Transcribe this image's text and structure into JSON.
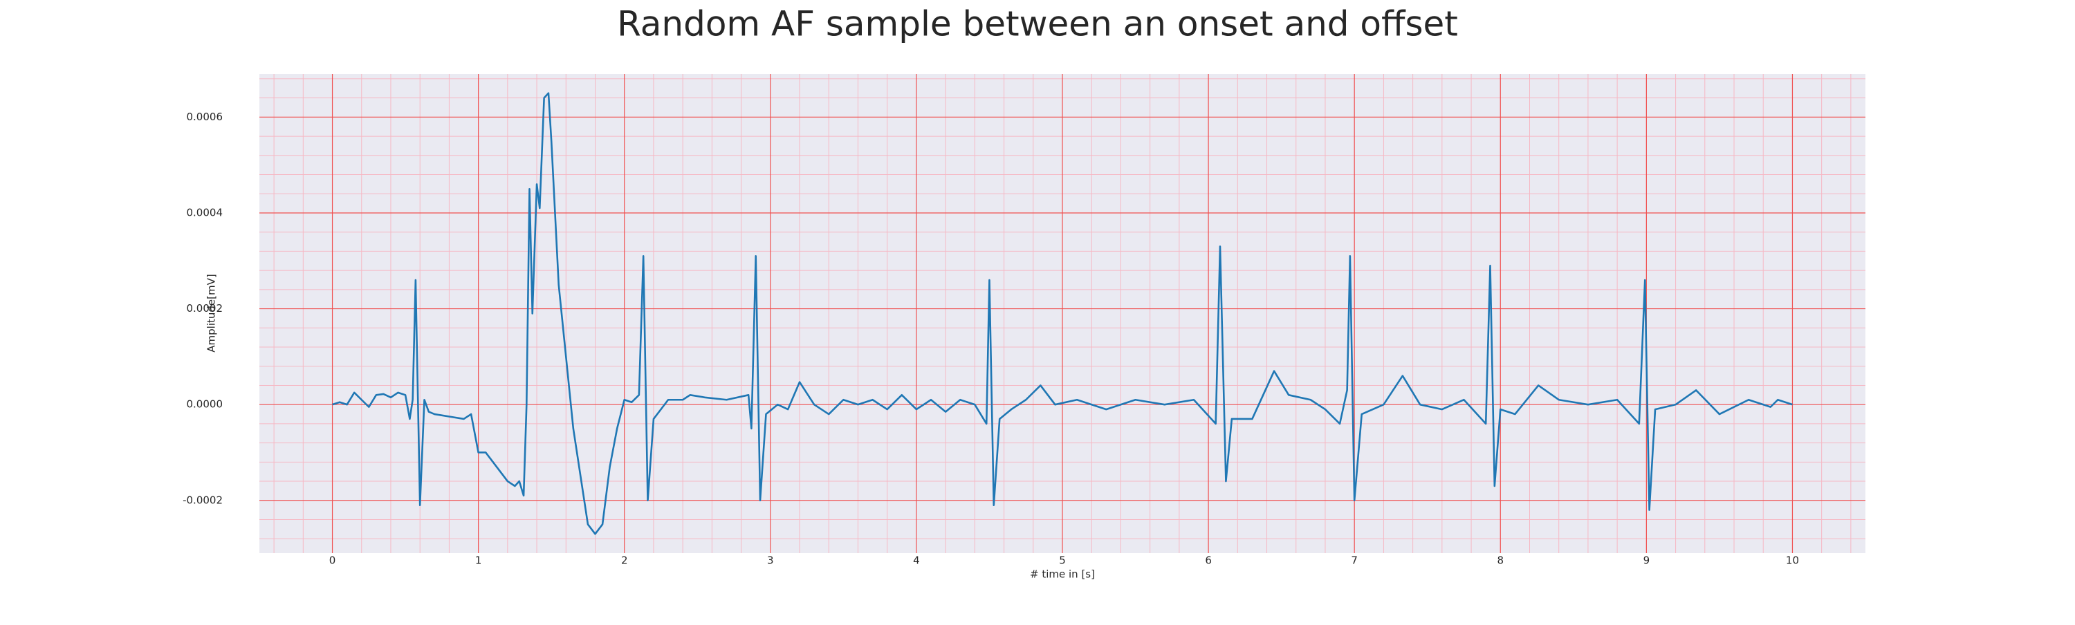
{
  "chart_data": {
    "type": "line",
    "title": "Random AF sample between an onset and offset",
    "xlabel": "# time in [s]",
    "ylabel": "Amplitude[mV]",
    "xlim": [
      -0.5,
      10.5
    ],
    "ylim": [
      -0.00031,
      0.00069
    ],
    "xticks": [
      0,
      1,
      2,
      3,
      4,
      5,
      6,
      7,
      8,
      9,
      10
    ],
    "yticks": [
      -0.0002,
      {
        "value": 0,
        "label": "0.0000"
      },
      0.0002,
      0.0004,
      0.0006
    ],
    "grid": true,
    "minor_grid": true,
    "color": "#1f77b4",
    "x": [
      0,
      0.05,
      0.1,
      0.15,
      0.2,
      0.25,
      0.3,
      0.35,
      0.4,
      0.45,
      0.5,
      0.53,
      0.55,
      0.57,
      0.6,
      0.63,
      0.66,
      0.7,
      0.8,
      0.9,
      0.95,
      1.0,
      1.05,
      1.1,
      1.15,
      1.2,
      1.25,
      1.28,
      1.31,
      1.33,
      1.35,
      1.37,
      1.4,
      1.42,
      1.45,
      1.48,
      1.5,
      1.55,
      1.6,
      1.65,
      1.7,
      1.75,
      1.8,
      1.85,
      1.9,
      1.95,
      2.0,
      2.05,
      2.1,
      2.13,
      2.16,
      2.2,
      2.25,
      2.3,
      2.4,
      2.45,
      2.55,
      2.7,
      2.85,
      2.87,
      2.9,
      2.93,
      2.97,
      3.05,
      3.12,
      3.2,
      3.3,
      3.4,
      3.5,
      3.6,
      3.7,
      3.8,
      3.9,
      4.0,
      4.1,
      4.2,
      4.3,
      4.4,
      4.48,
      4.5,
      4.53,
      4.57,
      4.65,
      4.75,
      4.85,
      4.95,
      5.1,
      5.3,
      5.5,
      5.7,
      5.9,
      6.05,
      6.08,
      6.12,
      6.16,
      6.3,
      6.45,
      6.55,
      6.7,
      6.8,
      6.9,
      6.95,
      6.97,
      7.0,
      7.05,
      7.2,
      7.33,
      7.45,
      7.6,
      7.75,
      7.9,
      7.93,
      7.96,
      8.0,
      8.1,
      8.26,
      8.4,
      8.6,
      8.8,
      8.95,
      8.99,
      9.02,
      9.06,
      9.2,
      9.34,
      9.5,
      9.7,
      9.85,
      9.9,
      10.0
    ],
    "values": [
      0.0,
      5e-06,
      0.0,
      2.5e-05,
      1e-05,
      -5e-06,
      2e-05,
      2.2e-05,
      1.5e-05,
      2.5e-05,
      2e-05,
      -3e-05,
      1e-05,
      0.00026,
      -0.00021,
      1e-05,
      -1.5e-05,
      -2e-05,
      -2.5e-05,
      -3e-05,
      -2e-05,
      -0.0001,
      -0.0001,
      -0.00012,
      -0.00014,
      -0.00016,
      -0.00017,
      -0.00016,
      -0.00019,
      0.0,
      0.00045,
      0.00019,
      0.00046,
      0.00041,
      0.00064,
      0.00065,
      0.00055,
      0.00025,
      0.0001,
      -5e-05,
      -0.00015,
      -0.00025,
      -0.00027,
      -0.00025,
      -0.00013,
      -5e-05,
      1e-05,
      5e-06,
      2e-05,
      0.00031,
      -0.0002,
      -3e-05,
      -1e-05,
      1e-05,
      1e-05,
      2e-05,
      1.5e-05,
      1e-05,
      2e-05,
      -5e-05,
      0.00031,
      -0.0002,
      -2e-05,
      0.0,
      -1e-05,
      4.7e-05,
      0.0,
      -2e-05,
      1e-05,
      0.0,
      1e-05,
      -1e-05,
      2e-05,
      -1e-05,
      1e-05,
      -1.5e-05,
      1e-05,
      0.0,
      -4e-05,
      0.00026,
      -0.00021,
      -3e-05,
      -1e-05,
      1e-05,
      4e-05,
      0.0,
      1e-05,
      -1e-05,
      1e-05,
      0.0,
      1e-05,
      -4e-05,
      0.00033,
      -0.00016,
      -3e-05,
      -3e-05,
      7e-05,
      2e-05,
      1e-05,
      -1e-05,
      -4e-05,
      3e-05,
      0.00031,
      -0.0002,
      -2e-05,
      0.0,
      6e-05,
      0.0,
      -1e-05,
      1e-05,
      -4e-05,
      0.00029,
      -0.00017,
      -1e-05,
      -2e-05,
      4e-05,
      1e-05,
      0.0,
      1e-05,
      -4e-05,
      0.00026,
      -0.00022,
      -1e-05,
      0.0,
      3e-05,
      -2e-05,
      1e-05,
      -5e-06,
      1e-05,
      0.0
    ]
  }
}
